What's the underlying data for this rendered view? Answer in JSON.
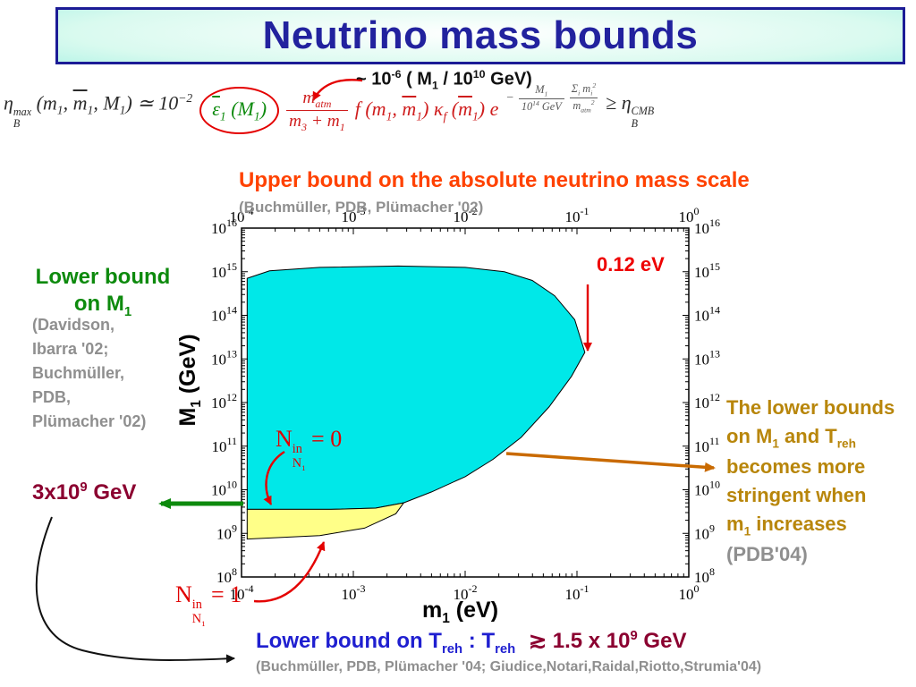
{
  "slide": {
    "title": "Neutrino mass bounds"
  },
  "scale_annotation": {
    "tokens": [
      "~ 10",
      {
        "S": "-6"
      },
      " ( M",
      {
        "s": "1"
      },
      " / 10",
      {
        "S": "10"
      },
      " GeV)"
    ]
  },
  "formula": {
    "lhs": [
      "η",
      {
        "ss": [
          [
            "max"
          ],
          [
            "B"
          ]
        ]
      },
      " (m",
      {
        "s": "1"
      },
      ", ",
      {
        "t": "m",
        "c": "ov"
      },
      {
        "s": "1"
      },
      ", M",
      {
        "s": "1"
      },
      ") ≃ 10",
      {
        "S": "−2"
      }
    ],
    "epsilon": [
      {
        "t": "ε",
        "c": "ov"
      },
      {
        "s": "1"
      },
      " (M",
      {
        "s": "1"
      },
      ")"
    ],
    "atm_fraction": [
      {
        "f": [
          [
            "m",
            {
              "s": "atm"
            }
          ],
          [
            "m",
            {
              "s": "3"
            },
            " + m",
            {
              "s": "1"
            }
          ]
        ]
      }
    ],
    "washout": [
      "f (m",
      {
        "s": "1"
      },
      ", ",
      {
        "t": "m",
        "c": "ov"
      },
      {
        "s": "1"
      },
      ") κ",
      {
        "s": "f"
      },
      " (",
      {
        "t": "m",
        "c": "ov"
      },
      {
        "s": "1"
      },
      ") e"
    ],
    "exponent": [
      "−",
      {
        "f": [
          [
            "M",
            {
              "s": "1"
            }
          ],
          [
            "10",
            {
              "S": "14"
            },
            " GeV"
          ]
        ]
      },
      {
        "f": [
          [
            "Σ",
            {
              "s": "i"
            },
            " m",
            {
              "s": "i"
            },
            {
              "S": "2"
            }
          ],
          [
            "m",
            {
              "s": "atm"
            },
            {
              "S": "2"
            }
          ]
        ]
      }
    ],
    "rhs": [
      "≥ η",
      {
        "ss": [
          [
            "CMB"
          ],
          [
            "B"
          ]
        ]
      }
    ]
  },
  "upper_bound": {
    "title": "Upper bound on the absolute neutrino mass scale",
    "citation": "(Buchmüller, PDB, Plümacher '02)"
  },
  "lower_bound_m1": {
    "line1": "Lower bound",
    "line2_tokens": [
      "on M",
      {
        "s": "1"
      }
    ],
    "citation_lines": [
      "(Davidson,",
      "Ibarra '02;",
      "Buchmüller,",
      "PDB,",
      "Plümacher '02)"
    ],
    "value_tokens": [
      "3x10",
      {
        "S": "9"
      },
      " GeV"
    ]
  },
  "right_note": {
    "lines": [
      [
        "The lower bounds"
      ],
      [
        "on M",
        {
          "s": "1"
        },
        " and T",
        {
          "s": "reh"
        }
      ],
      [
        " becomes more"
      ],
      [
        "stringent when"
      ],
      [
        "m",
        {
          "s": "1"
        },
        " increases"
      ]
    ],
    "citation": "(PDB'04)"
  },
  "treh_bound": {
    "blue_tokens": [
      "Lower bound on T",
      {
        "s": "reh"
      },
      " : T",
      {
        "s": "reh"
      }
    ],
    "value_tokens": [
      "≳ 1.5 x 10",
      {
        "S": "9"
      },
      " GeV"
    ],
    "citation": "(Buchmüller, PDB, Plümacher '04; Giudice,Notari,Raidal,Riotto,Strumia'04)"
  },
  "chart_data": {
    "type": "area",
    "title": "",
    "xlabel": "m_1 (eV)",
    "ylabel": "M_1 (GeV)",
    "xlabel_tokens": [
      "m",
      {
        "s": "1"
      },
      " (eV)"
    ],
    "ylabel_tokens": [
      "M",
      {
        "s": "1"
      },
      " (GeV)"
    ],
    "x_scale": "log",
    "y_scale": "log",
    "xlim_exponents": [
      -4,
      0
    ],
    "ylim_exponents": [
      8,
      16
    ],
    "x_tick_exponents": [
      -4,
      -3,
      -2,
      -1,
      0
    ],
    "y_tick_exponents": [
      8,
      9,
      10,
      11,
      12,
      13,
      14,
      15,
      16
    ],
    "grid": false,
    "key_values": {
      "m1_upper_bound_eV": 0.12,
      "M1_lower_bound_GeV": 3000000000.0,
      "Treh_lower_bound_GeV": 1500000000.0
    },
    "regions": [
      {
        "name": "allowed-region-cyan",
        "fill": "#00E8E8",
        "points_logxy": [
          [
            -3.95,
            9.55
          ],
          [
            -3.95,
            14.85
          ],
          [
            -3.75,
            15.02
          ],
          [
            -3.3,
            15.1
          ],
          [
            -2.6,
            15.13
          ],
          [
            -2.0,
            15.1
          ],
          [
            -1.65,
            15.0
          ],
          [
            -1.4,
            14.8
          ],
          [
            -1.2,
            14.45
          ],
          [
            -1.02,
            13.9
          ],
          [
            -0.93,
            13.15
          ],
          [
            -1.05,
            12.6
          ],
          [
            -1.25,
            11.9
          ],
          [
            -1.5,
            11.2
          ],
          [
            -1.75,
            10.7
          ],
          [
            -2.0,
            10.3
          ],
          [
            -2.3,
            9.95
          ],
          [
            -2.55,
            9.7
          ],
          [
            -2.8,
            9.58
          ],
          [
            -3.2,
            9.55
          ]
        ]
      },
      {
        "name": "zero-initial-abundance-region-yellow",
        "fill": "#FFFF88",
        "points_logxy": [
          [
            -3.95,
            9.55
          ],
          [
            -3.2,
            9.55
          ],
          [
            -2.8,
            9.58
          ],
          [
            -2.55,
            9.7
          ],
          [
            -2.62,
            9.45
          ],
          [
            -2.9,
            9.12
          ],
          [
            -3.3,
            8.95
          ],
          [
            -3.95,
            8.87
          ]
        ]
      }
    ],
    "annotations": {
      "mass_limit_text": "0.12 eV",
      "n_in_zero_tokens": [
        "N",
        {
          "ss": [
            [
              "in"
            ],
            [
              "N",
              {
                "s": "1"
              }
            ]
          ]
        },
        " = 0"
      ],
      "n_in_one_tokens": [
        "N",
        {
          "ss": [
            [
              "in"
            ],
            [
              "N",
              {
                "s": "1"
              }
            ]
          ]
        },
        " = 1"
      ]
    }
  }
}
